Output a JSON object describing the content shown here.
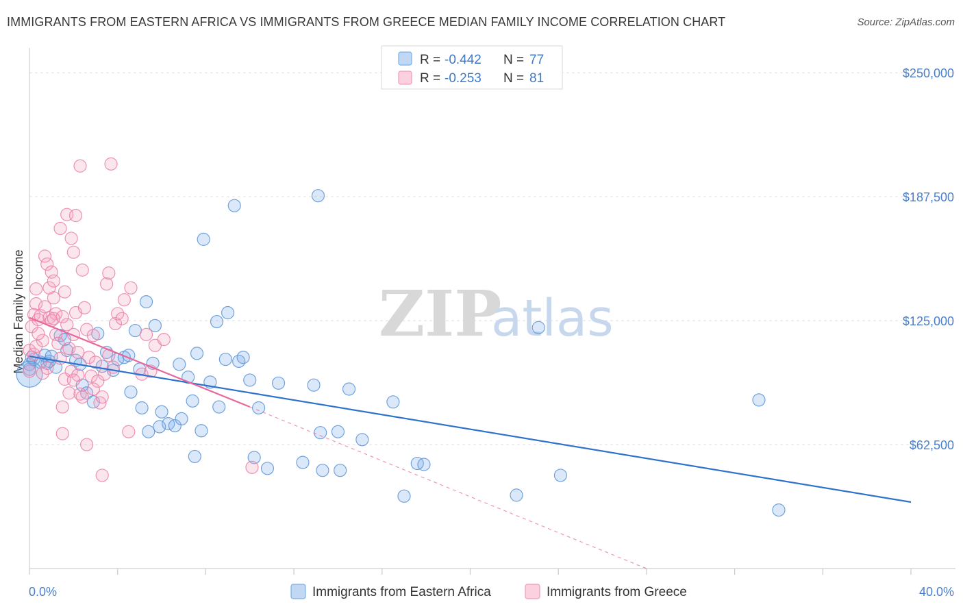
{
  "title": "IMMIGRANTS FROM EASTERN AFRICA VS IMMIGRANTS FROM GREECE MEDIAN FAMILY INCOME CORRELATION CHART",
  "source": "Source: ZipAtlas.com",
  "watermark": {
    "zip": "ZIP",
    "atlas": "atlas"
  },
  "legend_top": [
    {
      "r_label": "R =",
      "r_value": "-0.442",
      "n_label": "N =",
      "n_value": "77",
      "color": "#7aaee8"
    },
    {
      "r_label": "R =",
      "r_value": "-0.253",
      "n_label": "N =",
      "n_value": "81",
      "color": "#f29ab8"
    }
  ],
  "chart_data": {
    "type": "scatter",
    "title": "IMMIGRANTS FROM EASTERN AFRICA VS IMMIGRANTS FROM GREECE MEDIAN FAMILY INCOME CORRELATION CHART",
    "xlabel": "",
    "ylabel": "Median Family Income",
    "xlim": [
      0,
      40
    ],
    "ylim": [
      0,
      262500
    ],
    "x_tick_labels": [
      "0.0%",
      "40.0%"
    ],
    "y_tick_labels": [
      "$62,500",
      "$125,000",
      "$187,500",
      "$250,000"
    ],
    "y_tick_values": [
      62500,
      125000,
      187500,
      250000
    ],
    "grid": true,
    "legend_position": "top-center and bottom",
    "series": [
      {
        "name": "Immigrants from Eastern Africa",
        "color": "#7aaee8",
        "stroke": "#5b93d6",
        "trend": {
          "x": [
            0.0,
            40.0
          ],
          "y": [
            107000,
            33500
          ],
          "color": "#2f72cc"
        },
        "points": [
          [
            0.0,
            100500
          ],
          [
            0.0,
            103000
          ],
          [
            0.1,
            106500
          ],
          [
            0.2,
            105500
          ],
          [
            0.5,
            104000
          ],
          [
            0.7,
            107500
          ],
          [
            0.8,
            103500
          ],
          [
            0.9,
            104500
          ],
          [
            1.0,
            107000
          ],
          [
            1.2,
            101500
          ],
          [
            1.4,
            117500
          ],
          [
            1.6,
            115500
          ],
          [
            1.7,
            110000
          ],
          [
            2.1,
            105000
          ],
          [
            2.3,
            103000
          ],
          [
            2.4,
            92500
          ],
          [
            2.6,
            88500
          ],
          [
            2.9,
            84000
          ],
          [
            3.1,
            118500
          ],
          [
            3.3,
            102000
          ],
          [
            3.5,
            109000
          ],
          [
            3.8,
            100000
          ],
          [
            4.0,
            105500
          ],
          [
            4.3,
            106500
          ],
          [
            4.5,
            107500
          ],
          [
            4.6,
            89000
          ],
          [
            4.8,
            120000
          ],
          [
            5.0,
            100500
          ],
          [
            5.1,
            81000
          ],
          [
            5.3,
            134500
          ],
          [
            5.4,
            69000
          ],
          [
            5.6,
            103500
          ],
          [
            5.7,
            122500
          ],
          [
            5.9,
            71500
          ],
          [
            6.0,
            79000
          ],
          [
            6.3,
            73000
          ],
          [
            6.6,
            72000
          ],
          [
            6.8,
            103000
          ],
          [
            6.9,
            75500
          ],
          [
            7.2,
            96500
          ],
          [
            7.4,
            84500
          ],
          [
            7.5,
            56500
          ],
          [
            7.6,
            108500
          ],
          [
            7.8,
            69500
          ],
          [
            7.9,
            166000
          ],
          [
            8.2,
            94000
          ],
          [
            8.5,
            124500
          ],
          [
            8.6,
            81500
          ],
          [
            8.9,
            105500
          ],
          [
            9.0,
            129000
          ],
          [
            9.3,
            183000
          ],
          [
            9.5,
            104500
          ],
          [
            9.7,
            106500
          ],
          [
            10.0,
            95000
          ],
          [
            10.2,
            56000
          ],
          [
            10.4,
            81000
          ],
          [
            10.8,
            50500
          ],
          [
            11.3,
            93500
          ],
          [
            12.4,
            53500
          ],
          [
            12.9,
            92500
          ],
          [
            13.1,
            188000
          ],
          [
            13.2,
            68500
          ],
          [
            13.3,
            49500
          ],
          [
            14.0,
            69000
          ],
          [
            14.1,
            49500
          ],
          [
            14.5,
            90500
          ],
          [
            15.1,
            65000
          ],
          [
            16.5,
            84000
          ],
          [
            17.0,
            36500
          ],
          [
            17.6,
            53000
          ],
          [
            17.9,
            52500
          ],
          [
            22.1,
            37000
          ],
          [
            23.1,
            121500
          ],
          [
            24.1,
            47000
          ],
          [
            33.1,
            85000
          ],
          [
            34.0,
            29500
          ],
          [
            0.0,
            98000
          ]
        ]
      },
      {
        "name": "Immigrants from Greece",
        "color": "#f4a6c3",
        "stroke": "#ea7fa6",
        "trend": {
          "x": [
            0.0,
            10.0
          ],
          "y": [
            126500,
            81500
          ],
          "color": "#e8669a",
          "dashed_extension": {
            "x": [
              10.0,
              28.0
            ],
            "y": [
              81500,
              0
            ]
          }
        },
        "points": [
          [
            0.0,
            110000
          ],
          [
            0.0,
            99500
          ],
          [
            0.1,
            122000
          ],
          [
            0.2,
            128000
          ],
          [
            0.2,
            108000
          ],
          [
            0.3,
            133500
          ],
          [
            0.3,
            141000
          ],
          [
            0.4,
            125500
          ],
          [
            0.5,
            127500
          ],
          [
            0.6,
            115000
          ],
          [
            0.7,
            132000
          ],
          [
            0.7,
            157500
          ],
          [
            0.8,
            153500
          ],
          [
            0.9,
            126500
          ],
          [
            0.9,
            141500
          ],
          [
            1.0,
            149500
          ],
          [
            1.1,
            136500
          ],
          [
            1.1,
            145000
          ],
          [
            1.2,
            118000
          ],
          [
            1.2,
            128500
          ],
          [
            1.4,
            106000
          ],
          [
            1.4,
            171500
          ],
          [
            1.5,
            68000
          ],
          [
            1.5,
            81500
          ],
          [
            1.6,
            139500
          ],
          [
            1.6,
            95500
          ],
          [
            1.7,
            178500
          ],
          [
            1.8,
            111000
          ],
          [
            1.8,
            88500
          ],
          [
            1.9,
            99500
          ],
          [
            1.9,
            166500
          ],
          [
            2.0,
            159500
          ],
          [
            2.0,
            118000
          ],
          [
            2.1,
            129000
          ],
          [
            2.1,
            178000
          ],
          [
            2.2,
            97500
          ],
          [
            2.3,
            88000
          ],
          [
            2.3,
            203000
          ],
          [
            2.4,
            86500
          ],
          [
            2.4,
            150500
          ],
          [
            2.5,
            131500
          ],
          [
            2.6,
            120500
          ],
          [
            2.6,
            62500
          ],
          [
            2.7,
            106500
          ],
          [
            2.8,
            97000
          ],
          [
            2.9,
            117500
          ],
          [
            3.0,
            104000
          ],
          [
            3.1,
            94500
          ],
          [
            3.2,
            83500
          ],
          [
            3.3,
            86500
          ],
          [
            3.3,
            47000
          ],
          [
            3.4,
            98000
          ],
          [
            3.5,
            143500
          ],
          [
            3.6,
            107500
          ],
          [
            3.6,
            149000
          ],
          [
            3.7,
            204000
          ],
          [
            3.9,
            123500
          ],
          [
            4.0,
            128500
          ],
          [
            4.2,
            126000
          ],
          [
            4.3,
            135500
          ],
          [
            4.5,
            69000
          ],
          [
            4.6,
            141500
          ],
          [
            5.1,
            98000
          ],
          [
            5.3,
            118000
          ],
          [
            5.5,
            99500
          ],
          [
            5.7,
            112500
          ],
          [
            6.1,
            115500
          ],
          [
            10.1,
            51000
          ],
          [
            1.0,
            125000
          ],
          [
            0.4,
            118500
          ],
          [
            1.3,
            113500
          ],
          [
            2.2,
            109000
          ],
          [
            1.7,
            123000
          ],
          [
            0.8,
            101000
          ],
          [
            1.5,
            127000
          ],
          [
            0.6,
            98500
          ],
          [
            2.9,
            90500
          ],
          [
            1.1,
            126000
          ],
          [
            0.3,
            112000
          ],
          [
            2.0,
            95000
          ],
          [
            3.8,
            101500
          ]
        ]
      }
    ]
  }
}
